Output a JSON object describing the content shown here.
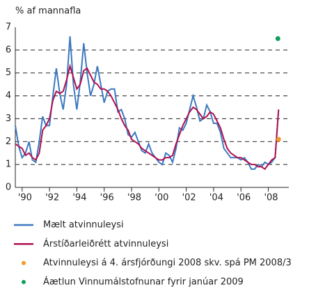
{
  "chart_data": {
    "type": "line",
    "y_label": "% af mannafla",
    "x": [
      1989.5,
      1989.75,
      1990,
      1990.25,
      1990.5,
      1990.75,
      1991,
      1991.25,
      1991.5,
      1991.75,
      1992,
      1992.25,
      1992.5,
      1992.75,
      1993,
      1993.25,
      1993.5,
      1993.75,
      1994,
      1994.25,
      1994.5,
      1994.75,
      1995,
      1995.25,
      1995.5,
      1995.75,
      1996,
      1996.25,
      1996.5,
      1996.75,
      1997,
      1997.25,
      1997.5,
      1997.75,
      1998,
      1998.25,
      1998.5,
      1998.75,
      1999,
      1999.25,
      1999.5,
      1999.75,
      2000,
      2000.25,
      2000.5,
      2000.75,
      2001,
      2001.25,
      2001.5,
      2001.75,
      2002,
      2002.25,
      2002.5,
      2002.75,
      2003,
      2003.25,
      2003.5,
      2003.75,
      2004,
      2004.25,
      2004.5,
      2004.75,
      2005,
      2005.25,
      2005.5,
      2005.75,
      2006,
      2006.25,
      2006.5,
      2006.75,
      2007,
      2007.25,
      2007.5,
      2007.75,
      2008,
      2008.25,
      2008.5,
      2008.75
    ],
    "series": [
      {
        "name": "Mælt atvinnuleysi",
        "color": "#3a78c0",
        "values": [
          2.7,
          1.8,
          1.3,
          1.5,
          2.0,
          1.2,
          1.1,
          2.0,
          3.1,
          2.7,
          2.7,
          4.0,
          5.2,
          4.1,
          3.4,
          4.5,
          6.6,
          4.5,
          3.4,
          4.6,
          6.3,
          5.0,
          4.0,
          4.5,
          5.3,
          4.5,
          3.7,
          4.2,
          4.3,
          4.3,
          3.3,
          3.4,
          3.0,
          2.3,
          2.2,
          2.4,
          2.0,
          1.6,
          1.5,
          1.9,
          1.5,
          1.3,
          1.1,
          1.0,
          1.5,
          1.4,
          1.1,
          1.7,
          2.6,
          2.5,
          2.8,
          3.4,
          4.0,
          3.5,
          2.9,
          3.0,
          3.6,
          3.3,
          2.8,
          2.8,
          2.4,
          1.7,
          1.5,
          1.3,
          1.3,
          1.3,
          1.2,
          1.3,
          1.1,
          0.8,
          0.8,
          1.0,
          0.9,
          1.1,
          1.0,
          1.1,
          1.3,
          3.4
        ]
      },
      {
        "name": "Árstíðarleiðrétt atvinnuleysi",
        "color": "#b0104f",
        "values": [
          1.9,
          1.8,
          1.7,
          1.4,
          1.5,
          1.3,
          1.2,
          1.5,
          2.5,
          2.7,
          3.0,
          3.8,
          4.2,
          4.1,
          4.2,
          4.7,
          5.3,
          4.8,
          4.3,
          4.5,
          5.1,
          5.2,
          4.9,
          4.6,
          4.5,
          4.3,
          4.3,
          4.2,
          4.0,
          3.7,
          3.4,
          3.0,
          2.7,
          2.5,
          2.1,
          2.0,
          1.9,
          1.7,
          1.6,
          1.5,
          1.4,
          1.3,
          1.2,
          1.2,
          1.3,
          1.3,
          1.4,
          1.9,
          2.3,
          2.7,
          3.0,
          3.3,
          3.5,
          3.4,
          3.2,
          3.0,
          3.1,
          3.3,
          3.2,
          2.9,
          2.6,
          2.1,
          1.7,
          1.5,
          1.4,
          1.3,
          1.3,
          1.2,
          1.1,
          1.0,
          1.0,
          0.9,
          0.9,
          0.8,
          1.0,
          1.2,
          1.3,
          3.4
        ]
      },
      {
        "name": "Atvinnuleysi á 4. ársfjórðungi 2008 skv. spá PM 2008/3",
        "color": "#f39a2a",
        "kind": "dot",
        "x": [
          2008.75
        ],
        "values": [
          2.1
        ]
      },
      {
        "name": "Áætlun Vinnumálstofnunar fyrir janúar 2009",
        "color": "#0ea05a",
        "kind": "dot",
        "x": [
          2008.7
        ],
        "values": [
          6.5
        ]
      }
    ],
    "xlim": [
      1989.5,
      2009.5
    ],
    "ylim": [
      0,
      7
    ],
    "xticks": [
      {
        "value": 1990,
        "label": "'90"
      },
      {
        "value": 1992,
        "label": "'92"
      },
      {
        "value": 1994,
        "label": "'94"
      },
      {
        "value": 1996,
        "label": "'96"
      },
      {
        "value": 1998,
        "label": "'98"
      },
      {
        "value": 2000,
        "label": "'00"
      },
      {
        "value": 2002,
        "label": "'02"
      },
      {
        "value": 2004,
        "label": "'04"
      },
      {
        "value": 2006,
        "label": "'06"
      },
      {
        "value": 2008,
        "label": "'08"
      }
    ],
    "yticks": [
      0,
      1,
      2,
      3,
      4,
      5,
      6,
      7
    ],
    "grid": true
  }
}
